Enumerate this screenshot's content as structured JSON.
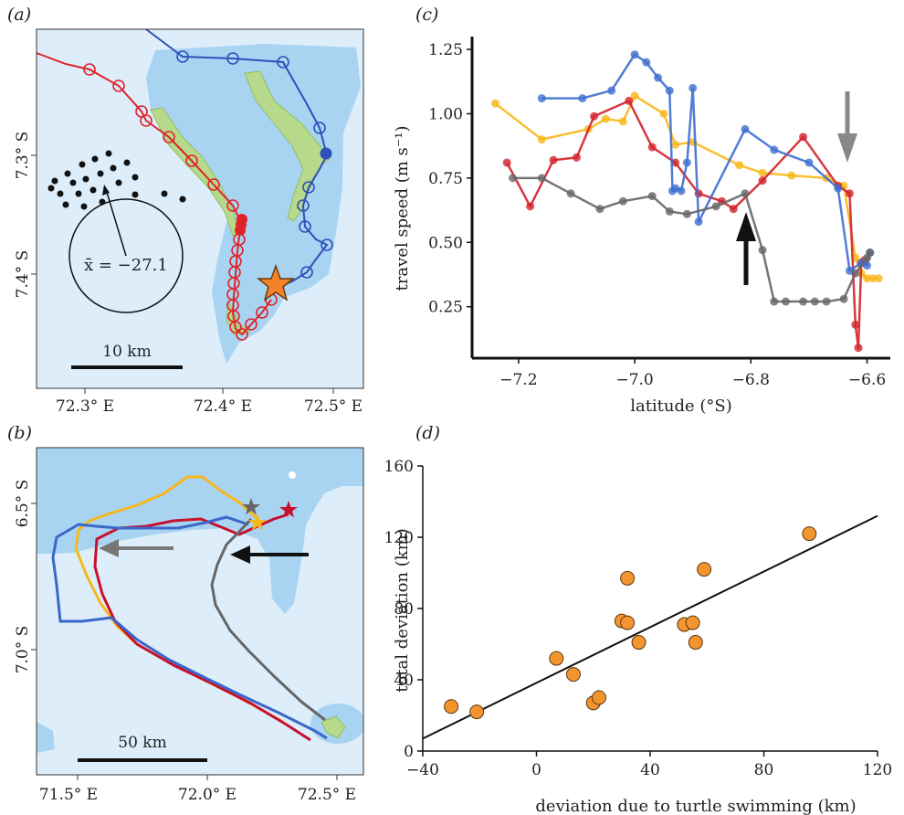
{
  "panel_labels": {
    "a": "(a)",
    "b": "(b)",
    "c": "(c)",
    "d": "(d)"
  },
  "panel_a": {
    "lat_labels": [
      "7.3° S",
      "7.4° S"
    ],
    "lon_labels": [
      "72.3° E",
      "72.4° E",
      "72.5° E"
    ],
    "scale_label": "10 km",
    "mean_label": "x̄ = −27.1",
    "colors": {
      "sea": "#ddeefa",
      "island": "#a8d4f2",
      "land": "#b7d98b",
      "red": "#e0222b",
      "blue": "#2f4fb8",
      "star": "#f5822a"
    }
  },
  "panel_b": {
    "lat_labels": [
      "6.5° S",
      "7.0° S"
    ],
    "lon_labels": [
      "71.5° E",
      "72.0° E",
      "72.5° E"
    ],
    "scale_label": "50 km",
    "colors": {
      "gold": "#f7b81c",
      "red": "#c8102e",
      "blue": "#3b67c9",
      "grey": "#666666"
    }
  },
  "chart_data": [
    {
      "id": "c",
      "type": "line",
      "xlabel": "latitude (°S)",
      "ylabel": "travel speed (m s⁻¹)",
      "xlim": [
        -7.28,
        -6.56
      ],
      "ylim": [
        0.05,
        1.3
      ],
      "xticks": [
        -7.2,
        -7.0,
        -6.8,
        -6.6
      ],
      "xtick_labels": [
        "−7.2",
        "−7.0",
        "−6.8",
        "−6.6"
      ],
      "yticks": [
        0.25,
        0.5,
        0.75,
        1.0,
        1.25
      ],
      "ytick_labels": [
        "0.25",
        "0.50",
        "0.75",
        "1.00",
        "1.25"
      ],
      "series": [
        {
          "color": "#f7b81c",
          "x": [
            -7.24,
            -7.16,
            -7.08,
            -7.05,
            -7.02,
            -7.0,
            -6.95,
            -6.93,
            -6.9,
            -6.82,
            -6.78,
            -6.73,
            -6.67,
            -6.64,
            -6.62,
            -6.61,
            -6.6,
            -6.59,
            -6.58
          ],
          "y": [
            1.04,
            0.9,
            0.94,
            0.98,
            0.97,
            1.07,
            1.0,
            0.88,
            0.89,
            0.8,
            0.77,
            0.76,
            0.75,
            0.72,
            0.44,
            0.38,
            0.36,
            0.36,
            0.36
          ]
        },
        {
          "color": "#d2232a",
          "x": [
            -7.22,
            -7.18,
            -7.14,
            -7.1,
            -7.07,
            -7.01,
            -6.97,
            -6.93,
            -6.89,
            -6.85,
            -6.83,
            -6.78,
            -6.71,
            -6.65,
            -6.63,
            -6.62,
            -6.615,
            -6.61,
            -6.605
          ],
          "y": [
            0.81,
            0.64,
            0.82,
            0.83,
            0.99,
            1.05,
            0.87,
            0.81,
            0.69,
            0.66,
            0.63,
            0.74,
            0.91,
            0.72,
            0.69,
            0.18,
            0.09,
            0.42,
            0.43
          ]
        },
        {
          "color": "#3f6fd0",
          "x": [
            -7.16,
            -7.09,
            -7.04,
            -7.0,
            -6.98,
            -6.96,
            -6.94,
            -6.935,
            -6.93,
            -6.92,
            -6.91,
            -6.9,
            -6.89,
            -6.81,
            -6.76,
            -6.7,
            -6.65,
            -6.63,
            -6.61,
            -6.6,
            -6.595
          ],
          "y": [
            1.06,
            1.06,
            1.09,
            1.23,
            1.2,
            1.14,
            1.09,
            0.7,
            0.71,
            0.7,
            0.81,
            1.1,
            0.58,
            0.94,
            0.86,
            0.81,
            0.71,
            0.39,
            0.42,
            0.41,
            0.46
          ]
        },
        {
          "color": "#666666",
          "x": [
            -7.21,
            -7.16,
            -7.11,
            -7.06,
            -7.02,
            -6.97,
            -6.94,
            -6.91,
            -6.86,
            -6.81,
            -6.78,
            -6.76,
            -6.74,
            -6.71,
            -6.69,
            -6.67,
            -6.64,
            -6.62,
            -6.6,
            -6.595
          ],
          "y": [
            0.75,
            0.75,
            0.69,
            0.63,
            0.66,
            0.68,
            0.62,
            0.61,
            0.64,
            0.69,
            0.47,
            0.27,
            0.27,
            0.27,
            0.27,
            0.27,
            0.28,
            0.38,
            0.44,
            0.46
          ]
        }
      ]
    },
    {
      "id": "d",
      "type": "scatter",
      "xlabel": "deviation due to turtle swimming (km)",
      "ylabel": "total deviation (km)",
      "xlim": [
        -40,
        120
      ],
      "ylim": [
        0,
        160
      ],
      "xticks": [
        -40,
        0,
        40,
        80,
        120
      ],
      "yticks": [
        0,
        40,
        80,
        120,
        160
      ],
      "points": [
        [
          -30,
          25
        ],
        [
          -21,
          22
        ],
        [
          7,
          52
        ],
        [
          13,
          43
        ],
        [
          20,
          27
        ],
        [
          22,
          30
        ],
        [
          30,
          73
        ],
        [
          32,
          72
        ],
        [
          32,
          97
        ],
        [
          36,
          61
        ],
        [
          52,
          71
        ],
        [
          55,
          72
        ],
        [
          56,
          61
        ],
        [
          59,
          102
        ],
        [
          96,
          122
        ]
      ],
      "fit": {
        "x": [
          -40,
          120
        ],
        "y": [
          7,
          132
        ]
      },
      "point_color": "#f3952f"
    }
  ]
}
